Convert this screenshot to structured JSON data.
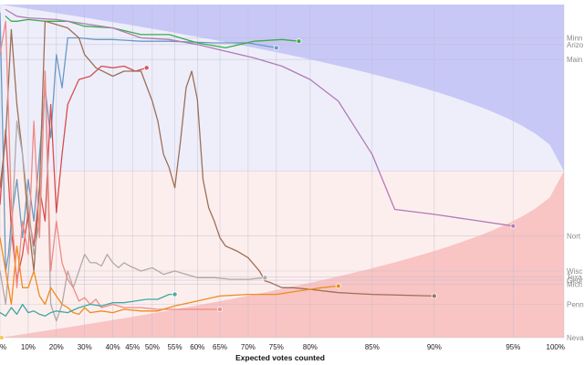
{
  "chart_data": {
    "type": "line",
    "title": "",
    "xlabel": "Expected votes counted",
    "ylabel": "",
    "x_unit": "percent of expected votes counted",
    "xlim": [
      0,
      100
    ],
    "ylim": [
      -1,
      1
    ],
    "grid": true,
    "x_ticks": [
      {
        "value": 0,
        "label": "%"
      },
      {
        "value": 5,
        "label": "10%"
      },
      {
        "value": 10,
        "label": "20%"
      },
      {
        "value": 15,
        "label": "30%"
      },
      {
        "value": 20,
        "label": "40%"
      },
      {
        "value": 23.5,
        "label": "45%"
      },
      {
        "value": 27,
        "label": "50%"
      },
      {
        "value": 31,
        "label": "55%"
      },
      {
        "value": 35,
        "label": "60%"
      },
      {
        "value": 39,
        "label": "65%"
      },
      {
        "value": 44,
        "label": "70%"
      },
      {
        "value": 49,
        "label": "75%"
      },
      {
        "value": 55,
        "label": "80%"
      },
      {
        "value": 66,
        "label": "85%"
      },
      {
        "value": 77,
        "label": "90%"
      },
      {
        "value": 91,
        "label": "95%"
      },
      {
        "value": 100,
        "label": "100%"
      }
    ],
    "background": {
      "blue": "#c8c8f7",
      "pink_top": "#eeeefb",
      "red": "#f9c4c4",
      "pink_bottom": "#fdeeee"
    },
    "state_labels": [
      {
        "label": "Minn",
        "y": 0.8
      },
      {
        "label": "Arizo",
        "y": 0.76
      },
      {
        "label": "Main",
        "y": 0.67
      },
      {
        "label": "Nort",
        "y": -0.39
      },
      {
        "label": "Wisc",
        "y": -0.6
      },
      {
        "label": "Texa",
        "y": -0.635
      },
      {
        "label": "Geor",
        "y": -0.655
      },
      {
        "label": "Mich",
        "y": -0.68
      },
      {
        "label": "Penn",
        "y": -0.8
      },
      {
        "label": "Neva",
        "y": -1.0
      }
    ],
    "series": [
      {
        "color": "#6a9ac4",
        "end_marker": true,
        "x": [
          0,
          0.5,
          1,
          1.5,
          2,
          3,
          4,
          5,
          6,
          7,
          8,
          9,
          10,
          11,
          12,
          14,
          17,
          20,
          25,
          30,
          38,
          44,
          49
        ],
        "y": [
          0.95,
          0.2,
          -0.6,
          -0.5,
          -0.3,
          -0.05,
          -0.4,
          -0.05,
          -0.3,
          0.1,
          0.5,
          0.2,
          0.7,
          0.5,
          0.8,
          0.8,
          0.79,
          0.79,
          0.78,
          0.78,
          0.77,
          0.77,
          0.74
        ]
      },
      {
        "color": "#3cab4a",
        "end_marker": true,
        "x": [
          1,
          2,
          3,
          5,
          8,
          10,
          12,
          15,
          20,
          25,
          30,
          35,
          40,
          45,
          50,
          53
        ],
        "y": [
          0.93,
          0.9,
          0.9,
          0.91,
          0.9,
          0.9,
          0.9,
          0.87,
          0.86,
          0.82,
          0.82,
          0.77,
          0.74,
          0.78,
          0.79,
          0.78
        ]
      },
      {
        "color": "#b07bb5",
        "end_marker": true,
        "x": [
          1,
          3,
          5,
          10,
          20,
          25,
          30,
          35,
          40,
          45,
          50,
          55,
          60,
          66,
          70,
          77,
          91
        ],
        "y": [
          0.97,
          0.93,
          0.92,
          0.91,
          0.86,
          0.8,
          0.79,
          0.76,
          0.72,
          0.68,
          0.63,
          0.55,
          0.42,
          0.1,
          -0.23,
          -0.26,
          -0.33
        ]
      },
      {
        "color": "#d64e4e",
        "end_marker": true,
        "x": [
          0,
          1,
          2,
          3,
          4,
          5,
          6,
          7,
          8,
          9,
          10,
          11,
          12,
          14,
          16,
          18,
          20,
          22,
          24,
          25,
          26
        ],
        "y": [
          -0.2,
          0.25,
          -0.35,
          -0.65,
          -0.5,
          -0.25,
          -0.45,
          -0.1,
          -0.3,
          0.4,
          -0.25,
          0.1,
          0.4,
          0.55,
          0.57,
          0.63,
          0.62,
          0.63,
          0.6,
          0.61,
          0.62
        ]
      },
      {
        "color": "#9c7056",
        "end_marker": true,
        "x": [
          0,
          1,
          2,
          3,
          4,
          5,
          6,
          7,
          8,
          10,
          12,
          14,
          15,
          17,
          20,
          22,
          25,
          27,
          28,
          29,
          30,
          31,
          32,
          33,
          34,
          35,
          36,
          37,
          38,
          39,
          40,
          42,
          44,
          45,
          46,
          47,
          48,
          50,
          52,
          55,
          60,
          66,
          77
        ],
        "y": [
          -0.1,
          0.2,
          0.85,
          0.4,
          0.1,
          -0.3,
          -0.6,
          -0.1,
          0.9,
          0.88,
          0.86,
          0.8,
          0.7,
          0.62,
          0.57,
          0.6,
          0.6,
          0.42,
          0.3,
          0.1,
          0.02,
          -0.1,
          0.18,
          0.5,
          0.6,
          0.43,
          -0.05,
          -0.22,
          -0.3,
          -0.4,
          -0.45,
          -0.48,
          -0.52,
          -0.56,
          -0.6,
          -0.66,
          -0.67,
          -0.7,
          -0.7,
          -0.71,
          -0.73,
          -0.74,
          -0.75
        ]
      },
      {
        "color": "#b0aaa8",
        "end_marker": true,
        "x": [
          0,
          1,
          2,
          3,
          4,
          5,
          6,
          7,
          8,
          9,
          10,
          11,
          12,
          13,
          14,
          15,
          16,
          17,
          18,
          19,
          20,
          21,
          22,
          23,
          25,
          27,
          29,
          31,
          33,
          35,
          38,
          41,
          44,
          47
        ],
        "y": [
          -0.6,
          -0.8,
          -0.4,
          0.3,
          0.1,
          -0.2,
          -0.5,
          -0.3,
          0.6,
          -0.8,
          -0.9,
          -0.8,
          -0.6,
          -0.7,
          -0.6,
          -0.5,
          -0.55,
          -0.55,
          -0.57,
          -0.5,
          -0.55,
          -0.58,
          -0.55,
          -0.57,
          -0.6,
          -0.58,
          -0.62,
          -0.6,
          -0.62,
          -0.64,
          -0.64,
          -0.65,
          -0.65,
          -0.64
        ]
      },
      {
        "color": "#f08a84",
        "end_marker": true,
        "x": [
          0,
          1,
          2,
          3,
          4,
          5,
          6,
          7,
          8,
          9,
          10,
          11,
          12,
          13,
          14,
          15,
          16,
          17,
          18,
          20,
          22,
          25,
          28,
          31,
          35,
          39
        ],
        "y": [
          0.7,
          0.9,
          -0.2,
          -0.7,
          -0.3,
          -0.5,
          0.3,
          -0.4,
          0.6,
          -0.6,
          -0.3,
          -0.55,
          -0.65,
          -0.7,
          -0.78,
          -0.76,
          -0.8,
          -0.77,
          -0.82,
          -0.8,
          -0.82,
          -0.82,
          -0.83,
          -0.83,
          -0.83,
          -0.83
        ]
      },
      {
        "color": "#ee8c1c",
        "end_marker": true,
        "x": [
          0,
          1,
          2,
          3,
          4,
          5,
          6,
          7,
          8,
          9,
          10,
          11,
          12,
          13,
          14,
          15,
          16,
          18,
          20,
          22,
          25,
          28,
          31,
          35,
          39,
          44,
          49,
          53,
          57,
          60
        ],
        "y": [
          -0.4,
          -0.6,
          -0.8,
          -0.45,
          -0.7,
          -0.7,
          -0.6,
          -0.75,
          -0.8,
          -0.7,
          -0.75,
          -0.8,
          -0.82,
          -0.85,
          -0.86,
          -0.82,
          -0.85,
          -0.84,
          -0.85,
          -0.83,
          -0.84,
          -0.84,
          -0.81,
          -0.78,
          -0.75,
          -0.74,
          -0.74,
          -0.72,
          -0.7,
          -0.69
        ]
      },
      {
        "color": "#3fa9a0",
        "end_marker": true,
        "x": [
          0,
          1,
          2,
          3,
          4,
          5,
          6,
          7,
          8,
          9,
          10,
          12,
          14,
          16,
          18,
          20,
          22,
          24,
          26,
          28,
          30,
          31
        ],
        "y": [
          -0.85,
          -0.87,
          -0.82,
          -0.86,
          -0.8,
          -0.85,
          -0.84,
          -0.86,
          -0.87,
          -0.85,
          -0.84,
          -0.85,
          -0.82,
          -0.8,
          -0.81,
          -0.79,
          -0.79,
          -0.78,
          -0.77,
          -0.77,
          -0.74,
          -0.74
        ]
      },
      {
        "color": "#f2c84b",
        "end_marker": true,
        "x": [
          0.3
        ],
        "y": [
          -1.0
        ]
      }
    ]
  }
}
